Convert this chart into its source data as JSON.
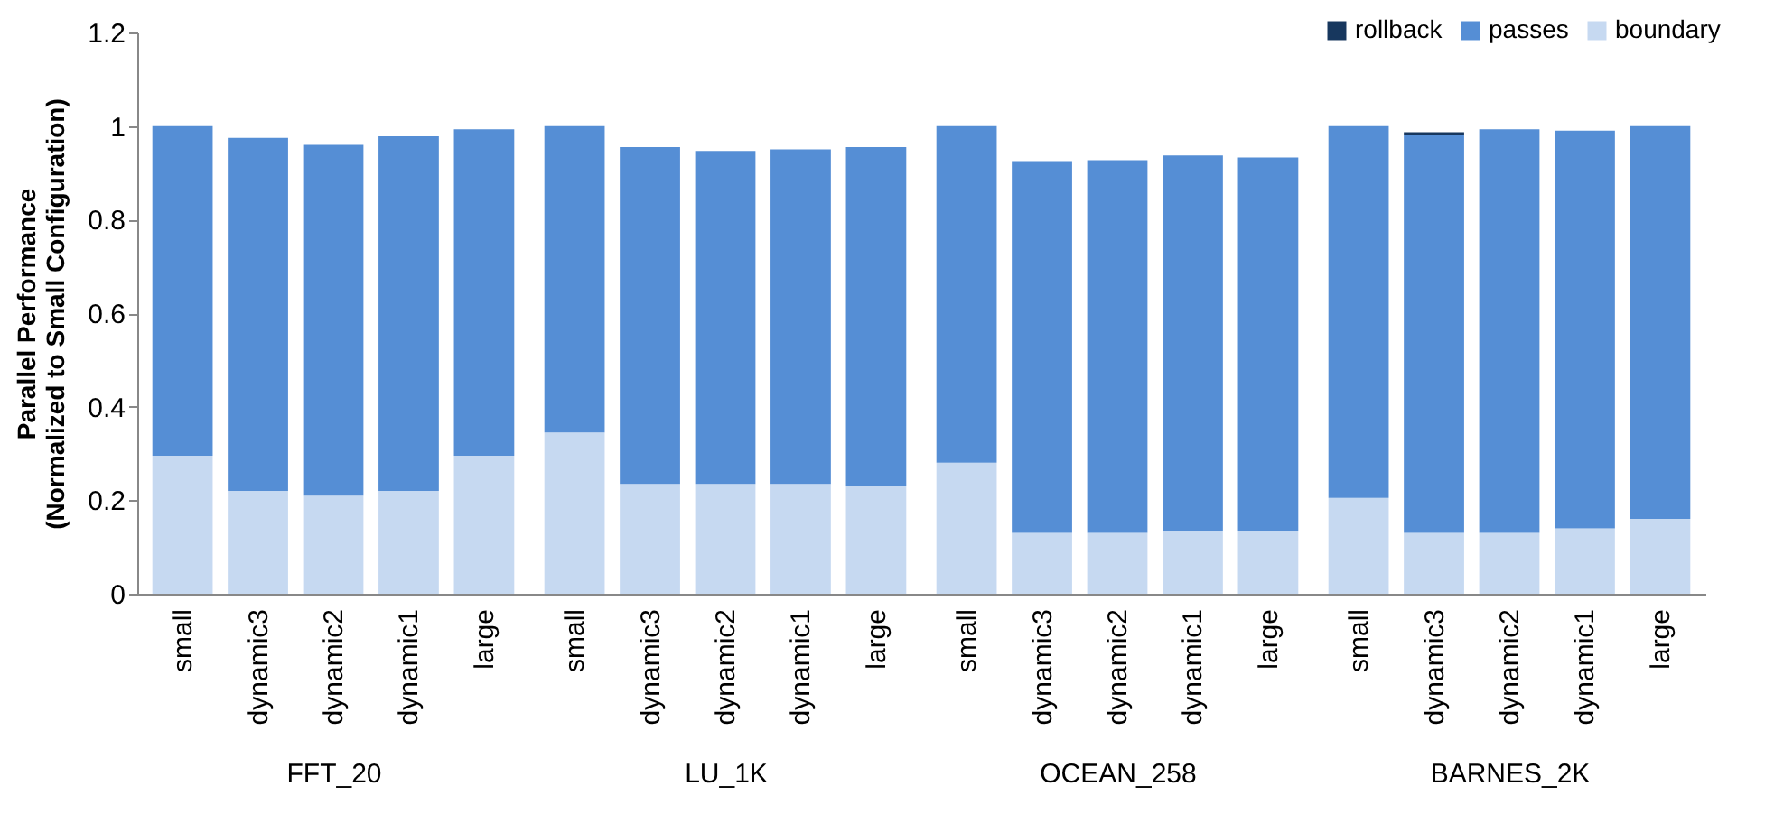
{
  "chart_data": [
    {
      "type": "bar",
      "stacked": true,
      "xlabel": "FFT_20",
      "ylabel": "Parallel Performance\n(Normalized to Small Configuration)",
      "categories": [
        "small",
        "dynamic3",
        "dynamic2",
        "dynamic1",
        "large"
      ],
      "ylim": [
        0,
        1.2
      ],
      "yticks": [
        0,
        0.2,
        0.4,
        0.6,
        0.8,
        1,
        1.2
      ],
      "series": [
        {
          "color": "#c6d9f1",
          "values": [
            0.295,
            0.22,
            0.21,
            0.22,
            0.295
          ]
        },
        {
          "color": "#558ed5",
          "values": [
            0.705,
            0.755,
            0.75,
            0.758,
            0.698
          ]
        },
        {
          "color": "#17375e",
          "values": [
            0,
            0,
            0,
            0,
            0
          ]
        }
      ]
    },
    {
      "type": "bar",
      "stacked": true,
      "xlabel": "LU_1K",
      "tick_labels": "x",
      "categories": [
        "small",
        "dynamic3",
        "dynamic2",
        "dynamic1",
        "large"
      ],
      "ylim": [
        0,
        1.2
      ],
      "yticks": [
        0,
        0.2,
        0.4,
        0.6,
        0.8,
        1,
        1.2
      ],
      "series": [
        {
          "color": "#c6d9f1",
          "values": [
            0.345,
            0.235,
            0.235,
            0.235,
            0.23
          ]
        },
        {
          "color": "#558ed5",
          "values": [
            0.655,
            0.72,
            0.712,
            0.715,
            0.725
          ]
        },
        {
          "color": "#17375e",
          "values": [
            0,
            0,
            0,
            0,
            0
          ]
        }
      ]
    },
    {
      "type": "bar",
      "stacked": true,
      "xlabel": "OCEAN_258",
      "tick_labels": "x",
      "categories": [
        "small",
        "dynamic3",
        "dynamic2",
        "dynamic1",
        "large"
      ],
      "ylim": [
        0,
        1.2
      ],
      "yticks": [
        0,
        0.2,
        0.4,
        0.6,
        0.8,
        1,
        1.2
      ],
      "series": [
        {
          "color": "#c6d9f1",
          "values": [
            0.28,
            0.13,
            0.13,
            0.135,
            0.135
          ]
        },
        {
          "color": "#558ed5",
          "values": [
            0.72,
            0.795,
            0.797,
            0.802,
            0.798
          ]
        },
        {
          "color": "#17375e",
          "values": [
            0,
            0,
            0,
            0,
            0
          ]
        }
      ]
    },
    {
      "type": "bar",
      "stacked": true,
      "xlabel": "BARNES_2K",
      "tick_labels": "x",
      "legend": "top right",
      "categories": [
        "small",
        "dynamic3",
        "dynamic2",
        "dynamic1",
        "large"
      ],
      "ylim": [
        0,
        1.2
      ],
      "yticks": [
        0,
        0.2,
        0.4,
        0.6,
        0.8,
        1,
        1.2
      ],
      "series": [
        {
          "name": "boundary",
          "color": "#c6d9f1",
          "values": [
            0.205,
            0.13,
            0.13,
            0.14,
            0.16
          ]
        },
        {
          "name": "passes",
          "color": "#558ed5",
          "values": [
            0.795,
            0.85,
            0.863,
            0.85,
            0.84
          ]
        },
        {
          "name": "rollback",
          "color": "#17375e",
          "values": [
            0,
            0.007,
            0,
            0,
            0
          ]
        }
      ]
    }
  ]
}
